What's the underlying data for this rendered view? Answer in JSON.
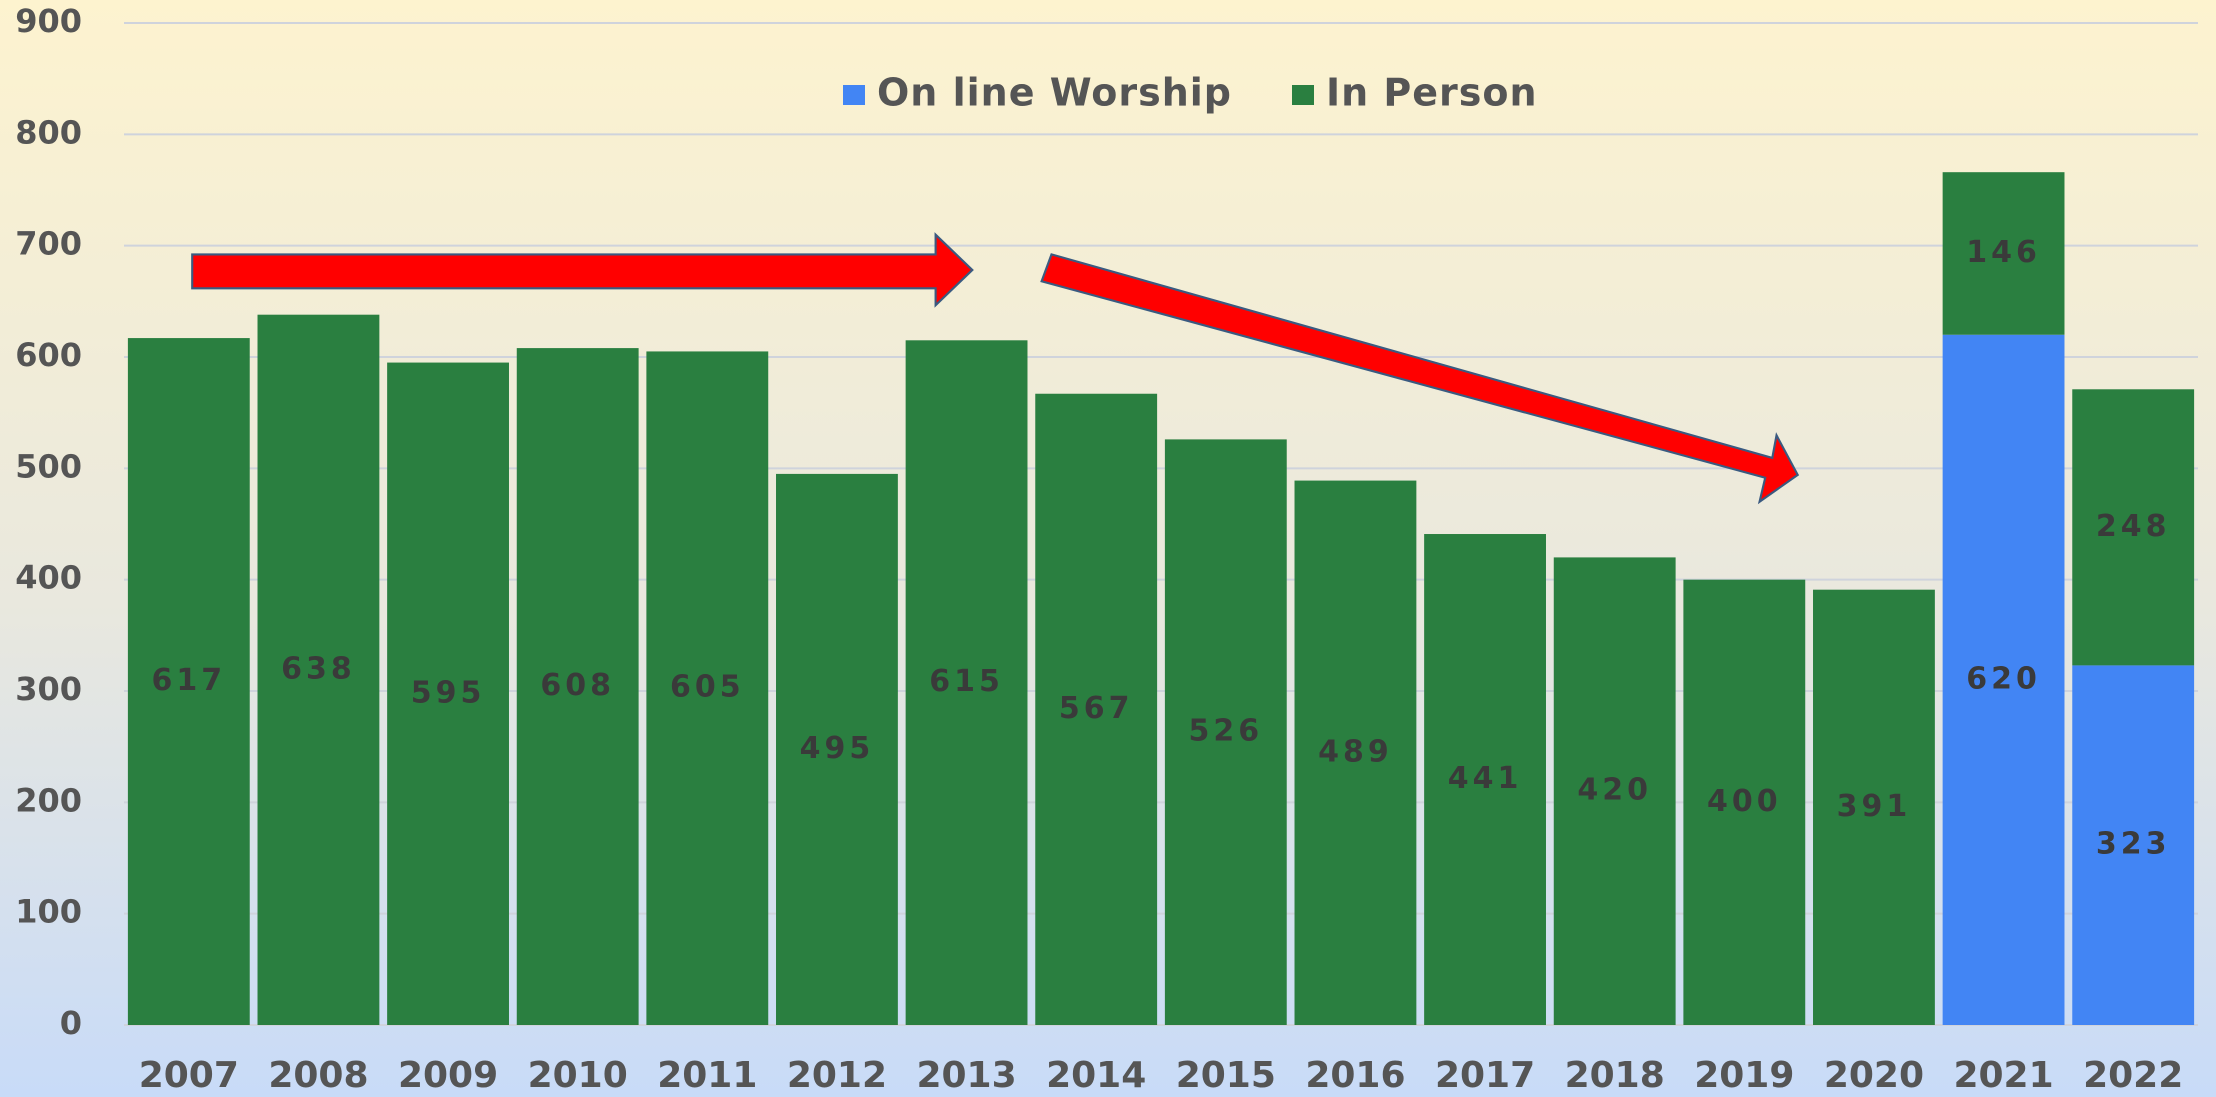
{
  "chart_data": {
    "type": "stacked_bar",
    "categories": [
      "2007",
      "2008",
      "2009",
      "2010",
      "2011",
      "2012",
      "2013",
      "2014",
      "2015",
      "2016",
      "2017",
      "2018",
      "2019",
      "2020",
      "2021",
      "2022"
    ],
    "series": [
      {
        "name": "On line Worship",
        "color": "#4285f4",
        "values": [
          null,
          null,
          null,
          null,
          null,
          null,
          null,
          null,
          null,
          null,
          null,
          null,
          null,
          null,
          620,
          323
        ]
      },
      {
        "name": "In Person",
        "color": "#2a7f40",
        "values": [
          617,
          638,
          595,
          608,
          605,
          495,
          615,
          567,
          526,
          489,
          441,
          420,
          400,
          391,
          146,
          248
        ]
      }
    ],
    "ylim": [
      0,
      900
    ],
    "yticks": [
      0,
      100,
      200,
      300,
      400,
      500,
      600,
      700,
      800,
      900
    ],
    "grid": true,
    "legend": "top"
  }
}
